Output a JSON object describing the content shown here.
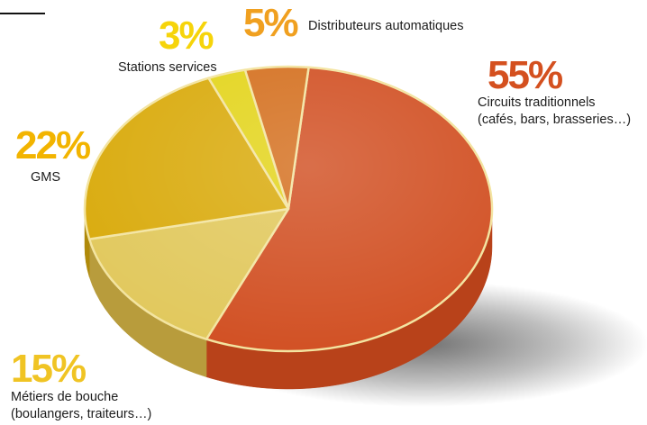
{
  "chart_data": {
    "type": "pie",
    "title": "",
    "slices": [
      {
        "percent_label": "55%",
        "value": 55,
        "label": "Circuits traditionnels",
        "sublabel": "(cafés, bars, brasseries…)",
        "color": "#d14f22",
        "side_color": "#b8421a",
        "label_color": "#d4501f"
      },
      {
        "percent_label": "15%",
        "value": 15,
        "label": "Métiers de bouche",
        "sublabel": "(boulangers, traiteurs…)",
        "color": "#e1c85c",
        "side_color": "#b89c3c",
        "label_color": "#f0c424"
      },
      {
        "percent_label": "22%",
        "value": 22,
        "label": "GMS",
        "sublabel": "",
        "color": "#d9aa0b",
        "side_color": "#b08a0a",
        "label_color": "#f2b400"
      },
      {
        "percent_label": "3%",
        "value": 3,
        "label": "Stations services",
        "sublabel": "",
        "color": "#e3d41a",
        "side_color": "#bfae10",
        "label_color": "#f6d40a"
      },
      {
        "percent_label": "5%",
        "value": 5,
        "label": "Distributeurs automatiques",
        "sublabel": "",
        "color": "#d46f1e",
        "side_color": "#b05c18",
        "label_color": "#f0a020"
      }
    ]
  }
}
